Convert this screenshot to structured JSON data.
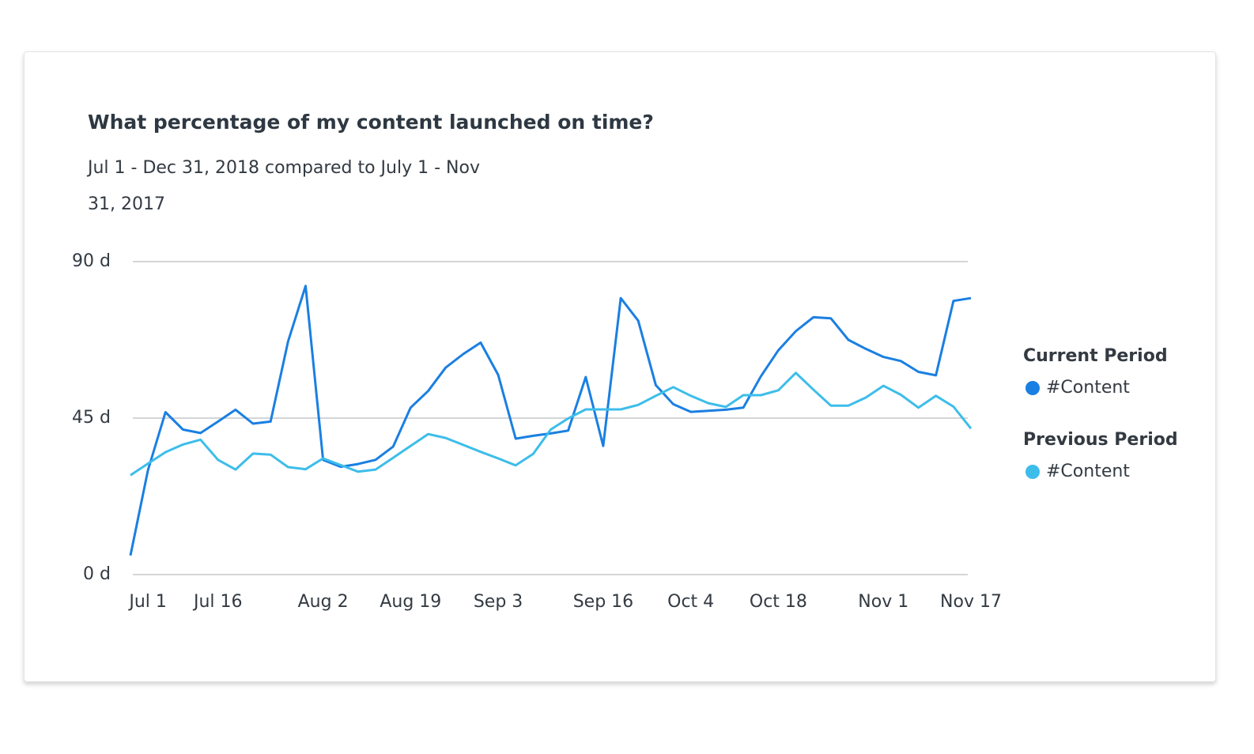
{
  "chart_data": {
    "type": "line",
    "title": "What percentage of my content launched on time?",
    "subtitle": "Jul 1 - Dec 31, 2018 compared to July 1 - Nov 31, 2017",
    "categories": [
      null,
      "Jul 1",
      null,
      null,
      null,
      "Jul 16",
      null,
      null,
      null,
      null,
      null,
      "Aug 2",
      null,
      null,
      null,
      null,
      "Aug 19",
      null,
      null,
      null,
      null,
      "Sep 3",
      null,
      null,
      null,
      null,
      null,
      "Sep 16",
      null,
      null,
      null,
      null,
      "Oct 4",
      null,
      null,
      null,
      null,
      "Oct 18",
      null,
      null,
      null,
      null,
      null,
      "Nov 1",
      null,
      null,
      null,
      null,
      "Nov 17"
    ],
    "series": [
      {
        "group": "Current Period",
        "name": "#Content",
        "color": "#1a7fe2",
        "values": [
          5.5,
          30,
          46.7,
          41.7,
          40.7,
          44,
          47.4,
          43.4,
          44,
          67,
          83,
          33,
          31,
          31.8,
          33,
          36.8,
          48,
          52.8,
          59.5,
          63.4,
          66.7,
          57.4,
          39.1,
          39.9,
          40.6,
          41.4,
          56.8,
          37,
          79.5,
          73,
          54.5,
          49,
          46.8,
          47.1,
          47.4,
          48,
          57,
          64.5,
          70,
          74,
          73.7,
          67.5,
          64.9,
          62.6,
          61.4,
          58.3,
          57.3,
          78.7,
          79.5
        ]
      },
      {
        "group": "Previous Period",
        "name": "#Content",
        "color": "#3dbdea",
        "values": [
          28.6,
          31.9,
          35.2,
          37.4,
          38.8,
          33,
          30.2,
          34.8,
          34.5,
          30.9,
          30.3,
          33.4,
          31.5,
          29.6,
          30.2,
          33.6,
          37,
          40.4,
          39.3,
          37.3,
          35.3,
          33.4,
          31.4,
          34.7,
          41.7,
          44.9,
          47.5,
          47.5,
          47.5,
          48.8,
          51.4,
          53.9,
          51.4,
          49.3,
          48.2,
          51.6,
          51.6,
          53,
          58,
          53.2,
          48.6,
          48.6,
          50.9,
          54.3,
          51.7,
          48,
          51.4,
          48.3,
          42
        ]
      }
    ],
    "ylim": [
      0,
      90
    ],
    "yticks": [
      {
        "value": 0,
        "label": "0 d"
      },
      {
        "value": 45,
        "label": "45 d"
      },
      {
        "value": 90,
        "label": "90 d"
      }
    ],
    "grid": true,
    "legend": "right"
  }
}
